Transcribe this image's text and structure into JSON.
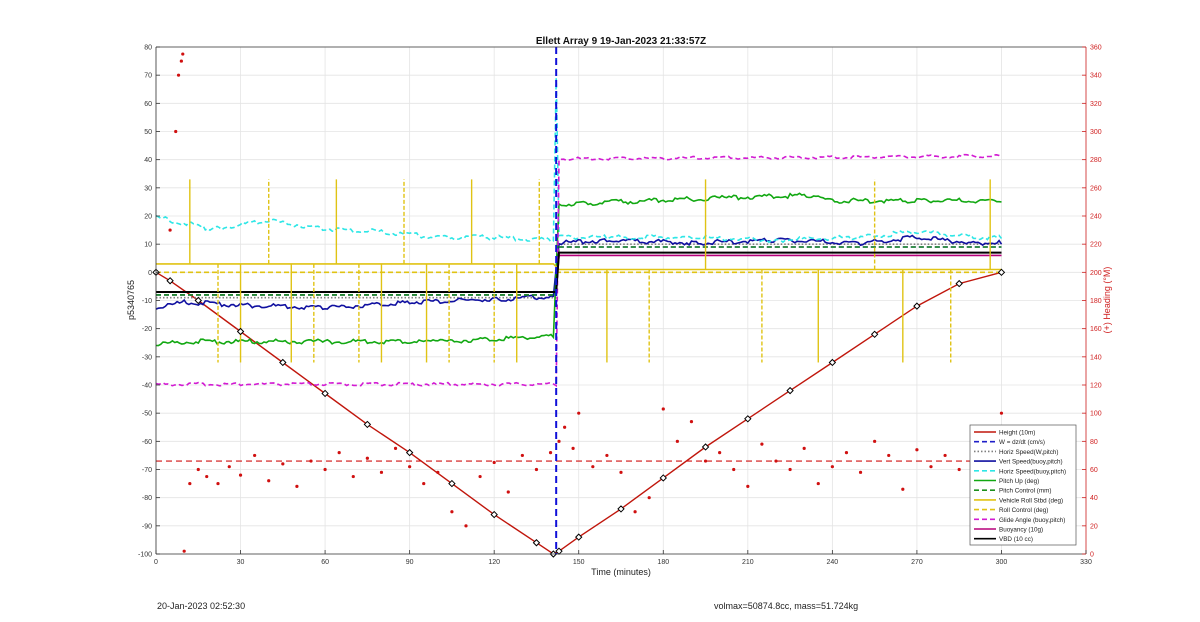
{
  "chart_data": {
    "type": "line",
    "title": "Ellett Array 9 19-Jan-2023 21:33:57Z",
    "xlabel": "Time (minutes)",
    "ylabel": "p5340765",
    "y2label": "(+) Heading (°M)",
    "xlim": [
      0,
      330
    ],
    "ylim": [
      -100,
      80
    ],
    "y2lim": [
      0,
      360
    ],
    "xticks": [
      0,
      30,
      60,
      90,
      120,
      150,
      180,
      210,
      240,
      270,
      300,
      330
    ],
    "yticks": [
      -100,
      -90,
      -80,
      -70,
      -60,
      -50,
      -40,
      -30,
      -20,
      -10,
      0,
      10,
      20,
      30,
      40,
      50,
      60,
      70,
      80
    ],
    "y2ticks": [
      0,
      20,
      40,
      60,
      80,
      100,
      120,
      140,
      160,
      180,
      200,
      220,
      240,
      260,
      280,
      300,
      320,
      340,
      360
    ],
    "grid": true,
    "legend_position": "bottom-right",
    "divider_x": 142,
    "colors": {
      "height": "#c0160c",
      "wdzdt": "#1f1fc8",
      "horiz_w": "#7f7f7f",
      "vert": "#1010a0",
      "horiz_buoy": "#2ee6e6",
      "pitch": "#12a812",
      "pitch_control": "#1d8f1d",
      "roll": "#e0c314",
      "roll_control": "#e0c314",
      "glide": "#d21bd2",
      "buoyancy": "#b5007a",
      "vbd": "#000000",
      "heading": "#d01010",
      "divider": "#1010d8",
      "axis_right": "#d02020"
    },
    "series": [
      {
        "name": "Height (10m)",
        "key": "height",
        "x": [
          0,
          5,
          15,
          30,
          45,
          60,
          75,
          90,
          105,
          120,
          135,
          141,
          143,
          150,
          165,
          180,
          195,
          210,
          225,
          240,
          255,
          270,
          285,
          300
        ],
        "y": [
          0,
          -3,
          -10,
          -21,
          -32,
          -43,
          -54,
          -64,
          -75,
          -86,
          -96,
          -100,
          -99,
          -94,
          -84,
          -73,
          -62,
          -52,
          -42,
          -32,
          -22,
          -12,
          -4,
          0
        ]
      },
      {
        "name": "W = dz/dt (cm/s)",
        "key": "wdzdt",
        "style": "dashed",
        "x": [
          0,
          142,
          143,
          300
        ],
        "y": [
          -8,
          -8,
          9,
          9
        ]
      },
      {
        "name": "Horiz Speed(W,pitch)",
        "key": "horiz_w",
        "style": "dotted",
        "x": [
          0,
          142,
          143,
          300
        ],
        "y": [
          -9,
          -9,
          10,
          10
        ]
      },
      {
        "name": "Vert Speed(buoy,pitch)",
        "key": "vert",
        "x": [
          0,
          10,
          30,
          60,
          90,
          120,
          141,
          143,
          160,
          190,
          220,
          250,
          270,
          290,
          300
        ],
        "y": [
          -13,
          -11,
          -12,
          -13,
          -11,
          -10,
          -9,
          10,
          11,
          10,
          11,
          10,
          12,
          10,
          10
        ]
      },
      {
        "name": "Horiz Speed(buoy,pitch)",
        "key": "horiz_buoy",
        "style": "dashed",
        "x": [
          0,
          5,
          20,
          40,
          60,
          80,
          100,
          120,
          141,
          142,
          143,
          160,
          190,
          220,
          250,
          270,
          290,
          300
        ],
        "y": [
          20,
          18,
          15,
          18,
          15,
          14,
          12,
          12,
          11,
          68,
          12,
          12,
          12,
          11,
          12,
          14,
          12,
          12
        ]
      },
      {
        "name": "Pitch Up (deg)",
        "key": "pitch",
        "x": [
          0,
          10,
          60,
          100,
          141,
          143,
          150,
          200,
          235,
          240,
          270,
          300
        ],
        "y": [
          -26,
          -25,
          -25,
          -25,
          -23,
          24,
          24,
          26,
          27,
          25,
          25,
          25
        ]
      },
      {
        "name": "Pitch Control (mm)",
        "key": "pitch_control",
        "style": "dashed",
        "x": [
          0,
          142,
          143,
          300
        ],
        "y": [
          -8,
          -8,
          9,
          9
        ]
      },
      {
        "name": "Vehicle Roll Stbd (deg)",
        "key": "roll",
        "x": [
          0,
          141,
          143,
          300
        ],
        "y": [
          3,
          3,
          1,
          1
        ]
      },
      {
        "name": "Roll Control (deg)",
        "key": "roll_control",
        "style": "dashed",
        "x": [
          0,
          141,
          143,
          300
        ],
        "y": [
          0,
          0,
          0,
          0
        ]
      },
      {
        "name": "Glide Angle (buoy,pitch)",
        "key": "glide",
        "style": "dashed",
        "x": [
          0,
          142,
          143,
          300
        ],
        "y": [
          -40,
          -40,
          40,
          41
        ]
      },
      {
        "name": "Buoyancy (10g)",
        "key": "buoyancy",
        "x": [
          0,
          142,
          143,
          300
        ],
        "y": [
          -7,
          -7,
          6,
          6
        ]
      },
      {
        "name": "VBD (10 cc)",
        "key": "vbd",
        "x": [
          0,
          142,
          143,
          300
        ],
        "y": [
          -7,
          -7,
          7,
          7
        ]
      }
    ],
    "heading_mean": 66,
    "heading_points": [
      [
        5,
        230
      ],
      [
        7,
        300
      ],
      [
        8,
        340
      ],
      [
        9,
        350
      ],
      [
        9.5,
        355
      ],
      [
        10,
        2
      ],
      [
        12,
        50
      ],
      [
        15,
        60
      ],
      [
        18,
        55
      ],
      [
        22,
        50
      ],
      [
        26,
        62
      ],
      [
        30,
        56
      ],
      [
        35,
        70
      ],
      [
        40,
        52
      ],
      [
        45,
        64
      ],
      [
        50,
        48
      ],
      [
        55,
        66
      ],
      [
        60,
        60
      ],
      [
        65,
        72
      ],
      [
        70,
        55
      ],
      [
        75,
        68
      ],
      [
        80,
        58
      ],
      [
        85,
        75
      ],
      [
        90,
        62
      ],
      [
        95,
        50
      ],
      [
        100,
        58
      ],
      [
        105,
        30
      ],
      [
        110,
        20
      ],
      [
        115,
        55
      ],
      [
        120,
        65
      ],
      [
        125,
        44
      ],
      [
        130,
        70
      ],
      [
        135,
        60
      ],
      [
        140,
        72
      ],
      [
        143,
        80
      ],
      [
        145,
        90
      ],
      [
        148,
        75
      ],
      [
        150,
        100
      ],
      [
        155,
        62
      ],
      [
        160,
        70
      ],
      [
        165,
        58
      ],
      [
        170,
        30
      ],
      [
        175,
        40
      ],
      [
        180,
        103
      ],
      [
        185,
        80
      ],
      [
        190,
        94
      ],
      [
        195,
        66
      ],
      [
        200,
        72
      ],
      [
        205,
        60
      ],
      [
        210,
        48
      ],
      [
        215,
        78
      ],
      [
        220,
        66
      ],
      [
        225,
        60
      ],
      [
        230,
        75
      ],
      [
        235,
        50
      ],
      [
        240,
        62
      ],
      [
        245,
        72
      ],
      [
        250,
        58
      ],
      [
        255,
        80
      ],
      [
        260,
        70
      ],
      [
        265,
        46
      ],
      [
        270,
        74
      ],
      [
        275,
        62
      ],
      [
        280,
        70
      ],
      [
        285,
        60
      ],
      [
        290,
        72
      ],
      [
        295,
        84
      ],
      [
        300,
        100
      ]
    ],
    "legend": [
      "Height (10m)",
      "W = dz/dt (cm/s)",
      "Horiz Speed(W,pitch)",
      "Vert Speed(buoy,pitch)",
      "Horiz Speed(buoy,pitch)",
      "Pitch Up (deg)",
      "Pitch Control (mm)",
      "Vehicle Roll Stbd (deg)",
      "Roll Control (deg)",
      "Glide Angle (buoy,pitch)",
      "Buoyancy (10g)",
      "VBD (10 cc)"
    ]
  },
  "footer": {
    "left": "20-Jan-2023 02:52:30",
    "right": "volmax=50874.8cc, mass=51.724kg"
  }
}
